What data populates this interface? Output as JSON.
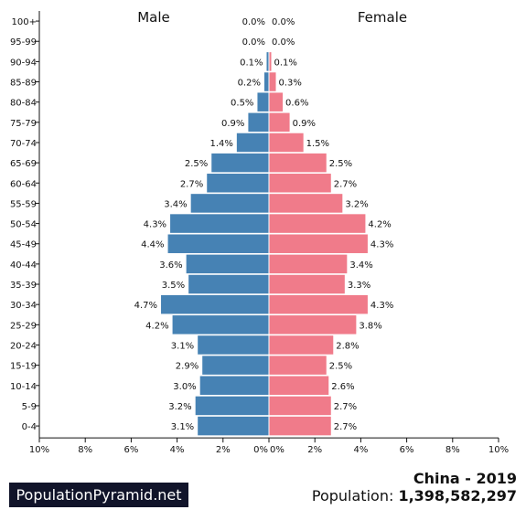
{
  "chart_data": {
    "type": "bar",
    "orientation": "horizontal-population-pyramid",
    "categories": [
      "100+",
      "95-99",
      "90-94",
      "85-89",
      "80-84",
      "75-79",
      "70-74",
      "65-69",
      "60-64",
      "55-59",
      "50-54",
      "45-49",
      "40-44",
      "35-39",
      "30-34",
      "25-29",
      "20-24",
      "15-19",
      "10-14",
      "5-9",
      "0-4"
    ],
    "series": [
      {
        "name": "Male",
        "color": "#4682b4",
        "values": [
          0.0,
          0.0,
          0.1,
          0.2,
          0.5,
          0.9,
          1.4,
          2.5,
          2.7,
          3.4,
          4.3,
          4.4,
          3.6,
          3.5,
          4.7,
          4.2,
          3.1,
          2.9,
          3.0,
          3.2,
          3.1
        ],
        "labels": [
          "0.0%",
          "0.0%",
          "0.1%",
          "0.2%",
          "0.5%",
          "0.9%",
          "1.4%",
          "2.5%",
          "2.7%",
          "3.4%",
          "4.3%",
          "4.4%",
          "3.6%",
          "3.5%",
          "4.7%",
          "4.2%",
          "3.1%",
          "2.9%",
          "3.0%",
          "3.2%",
          "3.1%"
        ]
      },
      {
        "name": "Female",
        "color": "#f07b8a",
        "values": [
          0.0,
          0.0,
          0.1,
          0.3,
          0.6,
          0.9,
          1.5,
          2.5,
          2.7,
          3.2,
          4.2,
          4.3,
          3.4,
          3.3,
          4.3,
          3.8,
          2.8,
          2.5,
          2.6,
          2.7,
          2.7
        ],
        "labels": [
          "0.0%",
          "0.0%",
          "0.1%",
          "0.3%",
          "0.6%",
          "0.9%",
          "1.5%",
          "2.5%",
          "2.7%",
          "3.2%",
          "4.2%",
          "4.3%",
          "3.4%",
          "3.3%",
          "4.3%",
          "3.8%",
          "2.8%",
          "2.5%",
          "2.6%",
          "2.7%",
          "2.7%"
        ]
      }
    ],
    "xlim": [
      0,
      10
    ],
    "left_ticks": [
      "10%",
      "8%",
      "6%",
      "4%",
      "2%",
      "0%"
    ],
    "right_ticks": [
      "0%",
      "2%",
      "4%",
      "6%",
      "8%",
      "10%"
    ],
    "grid": false
  },
  "footer": {
    "brand": "PopulationPyramid.net",
    "country_year": "China - 2019",
    "population_label": "Population:",
    "population_value": "1,398,582,297"
  }
}
